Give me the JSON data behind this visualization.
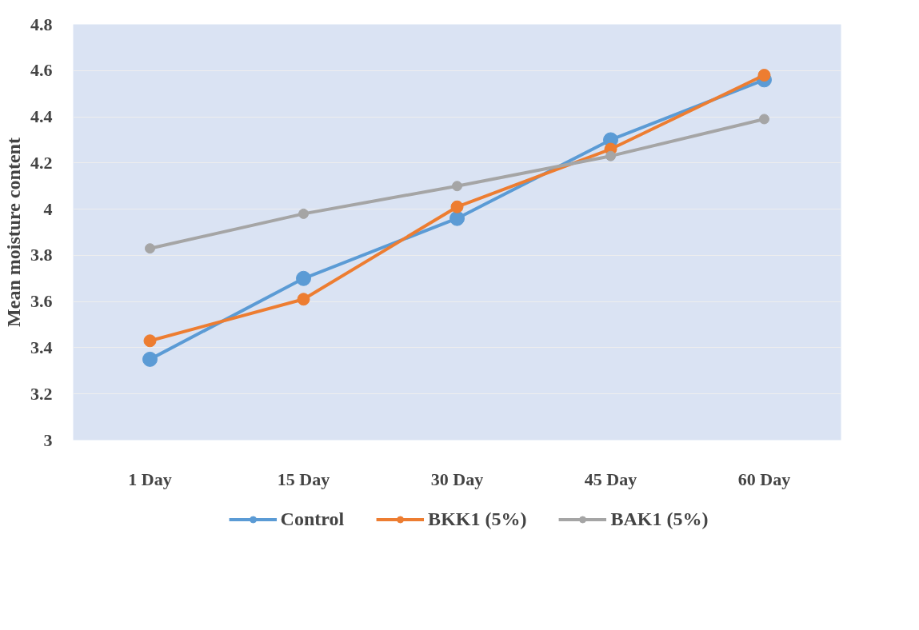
{
  "chart_data": {
    "type": "line",
    "categories": [
      "1 Day",
      "15 Day",
      "30 Day",
      "45 Day",
      "60 Day"
    ],
    "ylabel": "Mean moisture content",
    "ylim": [
      3,
      4.8
    ],
    "yticks": [
      3,
      3.2,
      3.4,
      3.6,
      3.8,
      4,
      4.2,
      4.4,
      4.6,
      4.8
    ],
    "grid": "y",
    "legend": "bottom",
    "marker": "circle",
    "line_style": "solid",
    "series": [
      {
        "name": "Control",
        "color": "#5b9bd5",
        "values": [
          3.35,
          3.7,
          3.96,
          4.3,
          4.56
        ]
      },
      {
        "name": "BKK1 (5%)",
        "color": "#ed7d31",
        "values": [
          3.43,
          3.61,
          4.01,
          4.26,
          4.58
        ]
      },
      {
        "name": "BAK1 (5%)",
        "color": "#a5a5a5",
        "values": [
          3.83,
          3.98,
          4.1,
          4.23,
          4.39
        ]
      }
    ]
  }
}
